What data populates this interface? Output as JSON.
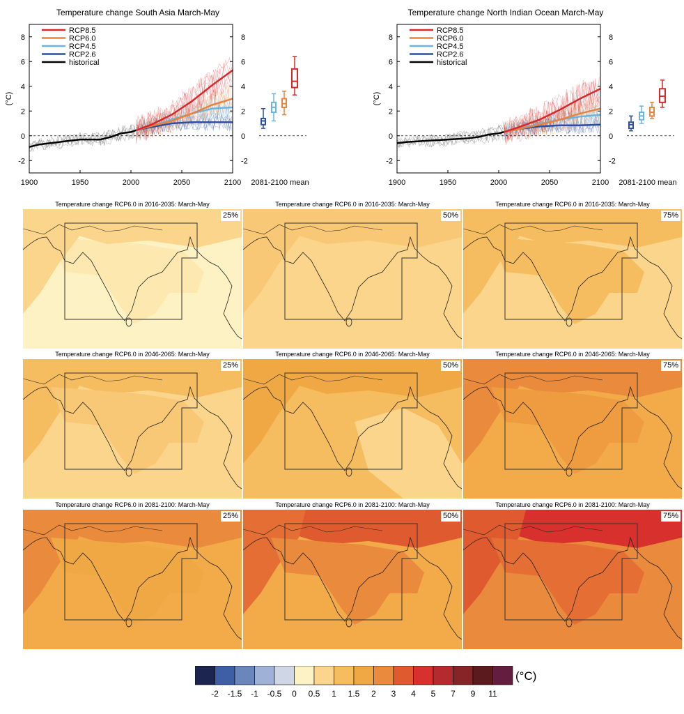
{
  "chart_data": [
    {
      "type": "line",
      "title": "Temperature change South Asia March-May",
      "ylabel": "(°C)",
      "x_ticks": [
        1900,
        1950,
        2000,
        2050,
        2100
      ],
      "y_ticks": [
        -2,
        0,
        2,
        4,
        6,
        8
      ],
      "xlim": [
        1900,
        2100
      ],
      "ylim": [
        -3,
        9
      ],
      "legend": [
        "RCP8.5",
        "RCP6.0",
        "RCP4.5",
        "RCP2.6",
        "historical"
      ],
      "legend_position": "top-left",
      "series": [
        {
          "name": "historical",
          "color": "#000000",
          "x": [
            1900,
            1910,
            1920,
            1930,
            1940,
            1950,
            1960,
            1970,
            1980,
            1990,
            2000,
            2005
          ],
          "y": [
            -0.9,
            -0.7,
            -0.6,
            -0.5,
            -0.4,
            -0.3,
            -0.3,
            -0.3,
            -0.1,
            0.2,
            0.3,
            0.45
          ]
        },
        {
          "name": "RCP2.6",
          "color": "#2c4f9e",
          "x": [
            2005,
            2020,
            2040,
            2060,
            2080,
            2100
          ],
          "y": [
            0.45,
            0.7,
            1.0,
            1.1,
            1.1,
            1.1
          ]
        },
        {
          "name": "RCP4.5",
          "color": "#6ab4e3",
          "x": [
            2005,
            2020,
            2040,
            2060,
            2080,
            2100
          ],
          "y": [
            0.45,
            0.8,
            1.3,
            1.8,
            2.2,
            2.3
          ]
        },
        {
          "name": "RCP6.0",
          "color": "#e8823c",
          "x": [
            2005,
            2020,
            2040,
            2060,
            2080,
            2100
          ],
          "y": [
            0.45,
            0.8,
            1.2,
            1.8,
            2.5,
            3.0
          ]
        },
        {
          "name": "RCP8.5",
          "color": "#d7282a",
          "x": [
            2005,
            2020,
            2040,
            2060,
            2080,
            2100
          ],
          "y": [
            0.45,
            0.9,
            1.7,
            2.8,
            4.1,
            5.3
          ]
        }
      ],
      "boxes": [
        {
          "name": "RCP2.6",
          "color": "#2c4f9e",
          "min": 0.6,
          "q1": 0.9,
          "median": 1.2,
          "q3": 1.4,
          "max": 2.2
        },
        {
          "name": "RCP4.5",
          "color": "#6ab4e3",
          "min": 1.2,
          "q1": 1.9,
          "median": 2.3,
          "q3": 2.7,
          "max": 3.4
        },
        {
          "name": "RCP6.0",
          "color": "#e8823c",
          "min": 1.7,
          "q1": 2.3,
          "median": 2.6,
          "q3": 3.0,
          "max": 3.6
        },
        {
          "name": "RCP8.5",
          "color": "#d7282a",
          "min": 3.3,
          "q1": 3.9,
          "median": 4.4,
          "q3": 5.4,
          "max": 6.4
        }
      ],
      "box_label": "2081-2100 mean"
    },
    {
      "type": "line",
      "title": "Temperature change North Indian Ocean March-May",
      "ylabel": "(°C)",
      "x_ticks": [
        1900,
        1950,
        2000,
        2050,
        2100
      ],
      "y_ticks": [
        -2,
        0,
        2,
        4,
        6,
        8
      ],
      "xlim": [
        1900,
        2100
      ],
      "ylim": [
        -3,
        9
      ],
      "legend": [
        "RCP8.5",
        "RCP6.0",
        "RCP4.5",
        "RCP2.6",
        "historical"
      ],
      "legend_position": "top-left",
      "series": [
        {
          "name": "historical",
          "color": "#000000",
          "x": [
            1900,
            1910,
            1920,
            1930,
            1940,
            1950,
            1960,
            1970,
            1980,
            1990,
            2000,
            2005
          ],
          "y": [
            -0.6,
            -0.5,
            -0.45,
            -0.4,
            -0.35,
            -0.3,
            -0.25,
            -0.2,
            -0.1,
            0.1,
            0.2,
            0.3
          ]
        },
        {
          "name": "RCP2.6",
          "color": "#2c4f9e",
          "x": [
            2005,
            2020,
            2040,
            2060,
            2080,
            2100
          ],
          "y": [
            0.3,
            0.55,
            0.75,
            0.85,
            0.85,
            0.9
          ]
        },
        {
          "name": "RCP4.5",
          "color": "#6ab4e3",
          "x": [
            2005,
            2020,
            2040,
            2060,
            2080,
            2100
          ],
          "y": [
            0.3,
            0.6,
            0.95,
            1.3,
            1.55,
            1.7
          ]
        },
        {
          "name": "RCP6.0",
          "color": "#e8823c",
          "x": [
            2005,
            2020,
            2040,
            2060,
            2080,
            2100
          ],
          "y": [
            0.3,
            0.55,
            0.9,
            1.3,
            1.8,
            2.2
          ]
        },
        {
          "name": "RCP8.5",
          "color": "#d7282a",
          "x": [
            2005,
            2020,
            2040,
            2060,
            2080,
            2100
          ],
          "y": [
            0.3,
            0.7,
            1.3,
            2.1,
            3.0,
            3.8
          ]
        }
      ],
      "boxes": [
        {
          "name": "RCP2.6",
          "color": "#2c4f9e",
          "min": 0.4,
          "q1": 0.6,
          "median": 0.9,
          "q3": 1.1,
          "max": 1.6
        },
        {
          "name": "RCP4.5",
          "color": "#6ab4e3",
          "min": 1.0,
          "q1": 1.3,
          "median": 1.6,
          "q3": 1.9,
          "max": 2.4
        },
        {
          "name": "RCP6.0",
          "color": "#e8823c",
          "min": 1.4,
          "q1": 1.6,
          "median": 1.9,
          "q3": 2.3,
          "max": 2.7
        },
        {
          "name": "RCP8.5",
          "color": "#d7282a",
          "min": 2.3,
          "q1": 2.7,
          "median": 3.2,
          "q3": 3.8,
          "max": 4.5
        }
      ],
      "box_label": "2081-2100 mean"
    },
    {
      "type": "heatmap",
      "panels": [
        {
          "title": "Temperature change RCP6.0 in 2016-2035: March-May",
          "percentile": "25%",
          "bg": "#fdf2c4",
          "patches": [
            {
              "shape": "land",
              "color": "#fde9b0"
            },
            {
              "shape": "west",
              "color": "#fbd58c"
            },
            {
              "shape": "north",
              "color": "#fbd58c"
            }
          ]
        },
        {
          "title": "Temperature change RCP6.0 in 2016-2035: March-May",
          "percentile": "50%",
          "bg": "#fbd58c",
          "patches": [
            {
              "shape": "west",
              "color": "#f8c876"
            },
            {
              "shape": "north",
              "color": "#f8c876"
            }
          ]
        },
        {
          "title": "Temperature change RCP6.0 in 2016-2035: March-May",
          "percentile": "75%",
          "bg": "#fbd58c",
          "patches": [
            {
              "shape": "west",
              "color": "#f6bd60"
            },
            {
              "shape": "north",
              "color": "#f6bd60"
            },
            {
              "shape": "land",
              "color": "#f6bd60"
            }
          ]
        },
        {
          "title": "Temperature change RCP6.0 in 2046-2065: March-May",
          "percentile": "25%",
          "bg": "#fbd58c",
          "patches": [
            {
              "shape": "west",
              "color": "#f6bd60"
            },
            {
              "shape": "north",
              "color": "#f6bd60"
            },
            {
              "shape": "land",
              "color": "#f8c876"
            }
          ]
        },
        {
          "title": "Temperature change RCP6.0 in 2046-2065: March-May",
          "percentile": "50%",
          "bg": "#f6bd60",
          "patches": [
            {
              "shape": "west",
              "color": "#f0a844"
            },
            {
              "shape": "north",
              "color": "#f0a844"
            },
            {
              "shape": "east",
              "color": "#fbd58c"
            }
          ]
        },
        {
          "title": "Temperature change RCP6.0 in 2046-2065: March-May",
          "percentile": "75%",
          "bg": "#f2ab48",
          "patches": [
            {
              "shape": "north",
              "color": "#ea8a3c"
            },
            {
              "shape": "west",
              "color": "#ea8a3c"
            },
            {
              "shape": "land",
              "color": "#ef9b40"
            }
          ]
        },
        {
          "title": "Temperature change RCP6.0 in 2081-2100: March-May",
          "percentile": "25%",
          "bg": "#f2ab48",
          "patches": [
            {
              "shape": "west",
              "color": "#ea8a3c"
            },
            {
              "shape": "north",
              "color": "#ea8a3c"
            },
            {
              "shape": "land",
              "color": "#f0a844"
            }
          ]
        },
        {
          "title": "Temperature change RCP6.0 in 2081-2100: March-May",
          "percentile": "50%",
          "bg": "#f2ab48",
          "patches": [
            {
              "shape": "north",
              "color": "#e05a30"
            },
            {
              "shape": "west",
              "color": "#e46e34"
            },
            {
              "shape": "land",
              "color": "#ea8a3c"
            }
          ]
        },
        {
          "title": "Temperature change RCP6.0 in 2081-2100: March-May",
          "percentile": "75%",
          "bg": "#ea8a3c",
          "patches": [
            {
              "shape": "north",
              "color": "#d8302c"
            },
            {
              "shape": "west",
              "color": "#e05a30"
            },
            {
              "shape": "land",
              "color": "#e46e34"
            }
          ]
        }
      ]
    },
    {
      "type": "colorbar",
      "unit": "(°C)",
      "tick_labels": [
        "-2",
        "-1.5",
        "-1",
        "-0.5",
        "0",
        "0.5",
        "1",
        "1.5",
        "2",
        "3",
        "4",
        "5",
        "7",
        "9",
        "11"
      ],
      "colors": [
        "#1b2550",
        "#3e5ea6",
        "#6b85bd",
        "#9fb1d6",
        "#cfd6e6",
        "#fdf2c4",
        "#fbd58c",
        "#f6bd60",
        "#f0a844",
        "#ea8a3c",
        "#e05a30",
        "#d8302c",
        "#b52a2e",
        "#862427",
        "#5a1a1e",
        "#651d3f"
      ]
    }
  ]
}
